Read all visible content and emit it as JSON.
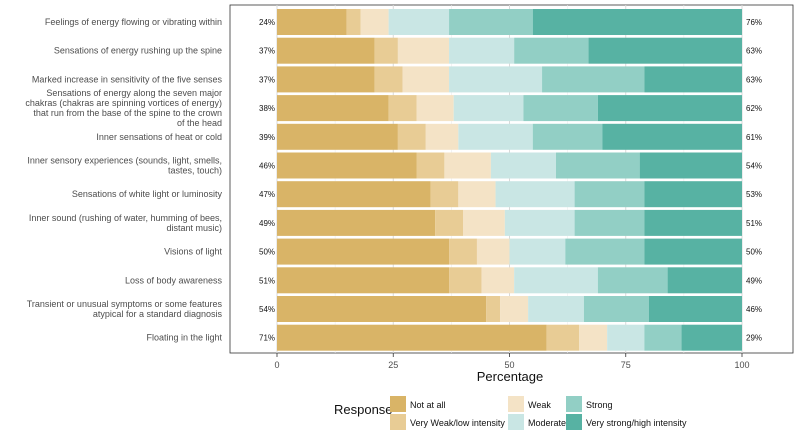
{
  "chart_data": {
    "type": "bar",
    "orientation": "horizontal",
    "stacked": true,
    "xlabel": "Percentage",
    "ylabel": "",
    "xlim": [
      0,
      100
    ],
    "xticks": [
      "0",
      "25",
      "50",
      "75",
      "100"
    ],
    "grid": true,
    "legend_position": "bottom",
    "legend_title": "Response",
    "categories": [
      {
        "lines": [
          "Feelings of energy flowing or vibrating within"
        ],
        "left_label": "24%",
        "right_label": "76%"
      },
      {
        "lines": [
          "Sensations of energy rushing up the spine"
        ],
        "left_label": "37%",
        "right_label": "63%"
      },
      {
        "lines": [
          "Marked increase in sensitivity of the five senses"
        ],
        "left_label": "37%",
        "right_label": "63%"
      },
      {
        "lines": [
          "Sensations of energy along the seven major",
          "chakras (chakras are spinning vortices of energy)",
          "that run from the base of the spine to the crown",
          "of the head"
        ],
        "left_label": "38%",
        "right_label": "62%"
      },
      {
        "lines": [
          "Inner sensations of heat or cold"
        ],
        "left_label": "39%",
        "right_label": "61%"
      },
      {
        "lines": [
          "Inner sensory experiences (sounds, light, smells,",
          "tastes, touch)"
        ],
        "left_label": "46%",
        "right_label": "54%"
      },
      {
        "lines": [
          "Sensations of white light or luminosity"
        ],
        "left_label": "47%",
        "right_label": "53%"
      },
      {
        "lines": [
          "Inner sound (rushing of water, humming of bees,",
          "distant music)"
        ],
        "left_label": "49%",
        "right_label": "51%"
      },
      {
        "lines": [
          "Visions of light"
        ],
        "left_label": "50%",
        "right_label": "50%"
      },
      {
        "lines": [
          "Loss of body awareness"
        ],
        "left_label": "51%",
        "right_label": "49%"
      },
      {
        "lines": [
          "Transient or unusual symptoms or some features",
          "atypical for a standard diagnosis"
        ],
        "left_label": "54%",
        "right_label": "46%"
      },
      {
        "lines": [
          "Floating in the light"
        ],
        "left_label": "71%",
        "right_label": "29%"
      }
    ],
    "series": [
      {
        "name": "Not at all",
        "color": "#d9b467",
        "values": [
          15,
          21,
          21,
          24,
          26,
          30,
          33,
          34,
          37,
          37,
          45,
          58
        ]
      },
      {
        "name": "Very Weak/low intensity",
        "color": "#e8cc95",
        "values": [
          3,
          5,
          6,
          6,
          6,
          6,
          6,
          6,
          6,
          7,
          3,
          7
        ]
      },
      {
        "name": "Weak",
        "color": "#f4e3c6",
        "values": [
          6,
          11,
          10,
          8,
          7,
          10,
          8,
          9,
          7,
          7,
          6,
          6
        ]
      },
      {
        "name": "Moderate",
        "color": "#c9e6e4",
        "values": [
          13,
          14,
          20,
          15,
          16,
          14,
          17,
          15,
          12,
          18,
          12,
          8
        ]
      },
      {
        "name": "Strong",
        "color": "#92cfc5",
        "values": [
          18,
          16,
          22,
          16,
          15,
          18,
          15,
          15,
          17,
          15,
          14,
          8
        ]
      },
      {
        "name": "Very strong/high intensity",
        "color": "#57b2a3",
        "values": [
          45,
          33,
          21,
          31,
          30,
          22,
          21,
          21,
          21,
          16,
          20,
          13
        ]
      }
    ],
    "legend_rows": [
      [
        "Not at all",
        "Weak",
        "Strong"
      ],
      [
        "Very Weak/low intensity",
        "Moderate",
        "Very strong/high intensity"
      ]
    ]
  }
}
